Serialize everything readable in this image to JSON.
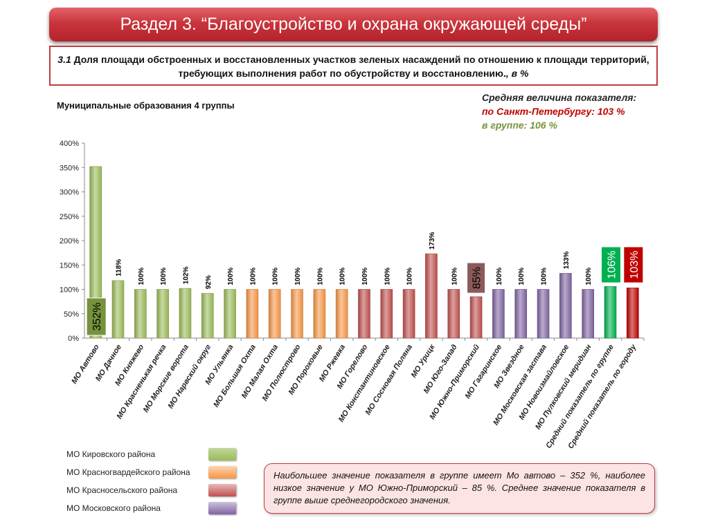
{
  "header": {
    "title": "Раздел 3. “Благоустройство и охрана окружающей среды”"
  },
  "subheader": {
    "number": "3.1",
    "text": " Доля площади обстроенных и восстановленных участков зеленых насаждений по отношению к площади территорий, требующих выполнения работ по обустройству и восстановлению.",
    "unit": ", в %"
  },
  "averages": {
    "title": "Средняя величина показателя:",
    "spb": "по Санкт-Петербургу:  103 %",
    "group": "в группе:  106 %"
  },
  "group_label": "Муниципальные образования 4 группы",
  "legend": [
    {
      "label": "МО Кировского района",
      "color": "#9bbb59"
    },
    {
      "label": "МО Красногвардейского района",
      "color": "#f79646"
    },
    {
      "label": "МО Красносельского района",
      "color": "#c0504d"
    },
    {
      "label": "МО Московского района",
      "color": "#8064a2"
    }
  ],
  "note": "Наибольшее значение показателя в группе имеет Мо автово – 352 %, наиболее низкое значение у МО Южно-Приморский – 85 %. Среднее значение показателя в группе выше  среднегородского значения.",
  "chart_data": {
    "type": "bar",
    "ylim": [
      0,
      400
    ],
    "yticks": [
      0,
      50,
      100,
      150,
      200,
      250,
      300,
      350,
      400
    ],
    "ytick_labels": [
      "0%",
      "50%",
      "100%",
      "150%",
      "200%",
      "250%",
      "300%",
      "350%",
      "400%"
    ],
    "grid": false,
    "categories": [
      "МО Автово",
      "МО Дачное",
      "МО Княжево",
      "МО Красненькая речка",
      "МО Морские ворота",
      "МО Нарвский округ",
      "МО Ульянка",
      "МО Большая Охта",
      "МО Малая Охта",
      "МО Полюстрово",
      "МО Пороховые",
      "МО Ржевка",
      "МО Горелово",
      "МО Константиновское",
      "МО Сосновая Поляна",
      "МО Урицк",
      "МО Юго-Запад",
      "МО Южно-Приморский",
      "МО Гагаринское",
      "МО Звездное",
      "МО Московская застава",
      "МО Новоизмайловское",
      "МО Пулковский меридиан",
      "Средний показатель по группе",
      "Средний показатель по городу"
    ],
    "values": [
      352,
      118,
      100,
      100,
      102,
      92,
      100,
      100,
      100,
      100,
      100,
      100,
      100,
      100,
      100,
      173,
      100,
      85,
      100,
      100,
      100,
      133,
      100,
      106,
      103
    ],
    "data_labels": [
      "352%",
      "118%",
      "100%",
      "100%",
      "102%",
      "92%",
      "100%",
      "100%",
      "100%",
      "100%",
      "100%",
      "100%",
      "100%",
      "100%",
      "100%",
      "173%",
      "100%",
      "85%",
      "100%",
      "100%",
      "100%",
      "133%",
      "100%",
      "106%",
      "103%"
    ],
    "highlighted": [
      0,
      17,
      23,
      24
    ],
    "groups": [
      0,
      0,
      0,
      0,
      0,
      0,
      0,
      1,
      1,
      1,
      1,
      1,
      2,
      2,
      2,
      2,
      2,
      2,
      3,
      3,
      3,
      3,
      3,
      4,
      5
    ],
    "group_colors": [
      "#9bbb59",
      "#f79646",
      "#c0504d",
      "#8064a2",
      "#00b050",
      "#c00000"
    ]
  }
}
